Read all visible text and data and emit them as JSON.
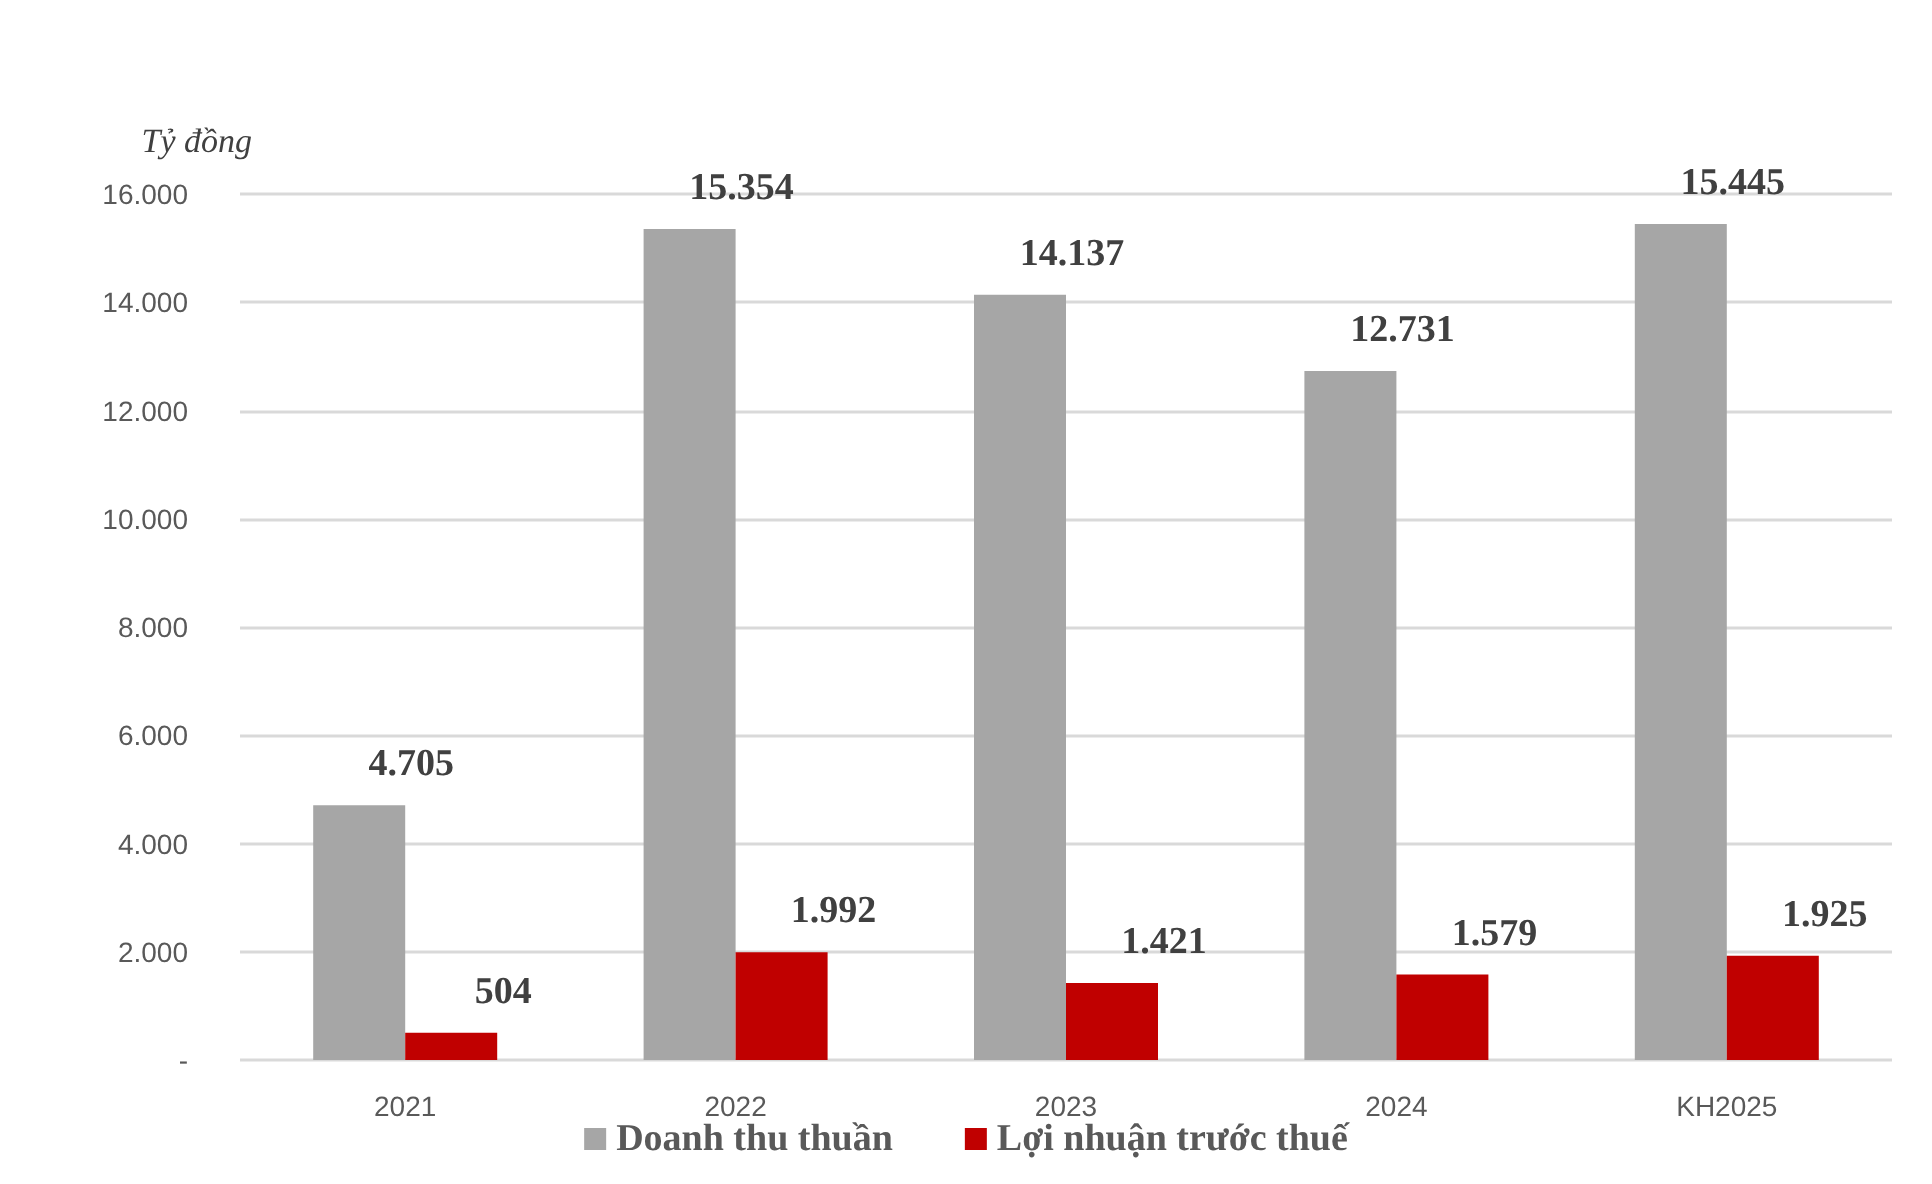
{
  "chart_data": {
    "type": "bar",
    "ylabel": "Tỷ đồng",
    "categories": [
      "2021",
      "2022",
      "2023",
      "2024",
      "KH2025"
    ],
    "series": [
      {
        "name": "Doanh thu thuần",
        "color": "#a6a6a6",
        "values": [
          4705,
          15354,
          14137,
          12731,
          15445
        ],
        "value_labels": [
          "4.705",
          "15.354",
          "14.137",
          "12.731",
          "15.445"
        ]
      },
      {
        "name": "Lợi nhuận trước thuế",
        "color": "#c00000",
        "values": [
          504,
          1992,
          1421,
          1579,
          1925
        ],
        "value_labels": [
          "504",
          "1.992",
          "1.421",
          "1.579",
          "1.925"
        ]
      }
    ],
    "ylim": [
      0,
      16000
    ],
    "yticks": [
      {
        "value": 0,
        "label": "-"
      },
      {
        "value": 2000,
        "label": "2.000"
      },
      {
        "value": 4000,
        "label": "4.000"
      },
      {
        "value": 6000,
        "label": "6.000"
      },
      {
        "value": 8000,
        "label": "8.000"
      },
      {
        "value": 10000,
        "label": "10.000"
      },
      {
        "value": 12000,
        "label": "12.000"
      },
      {
        "value": 14000,
        "label": "14.000"
      },
      {
        "value": 16000,
        "label": "16.000"
      }
    ],
    "grid": "y",
    "legend": "bottom"
  }
}
